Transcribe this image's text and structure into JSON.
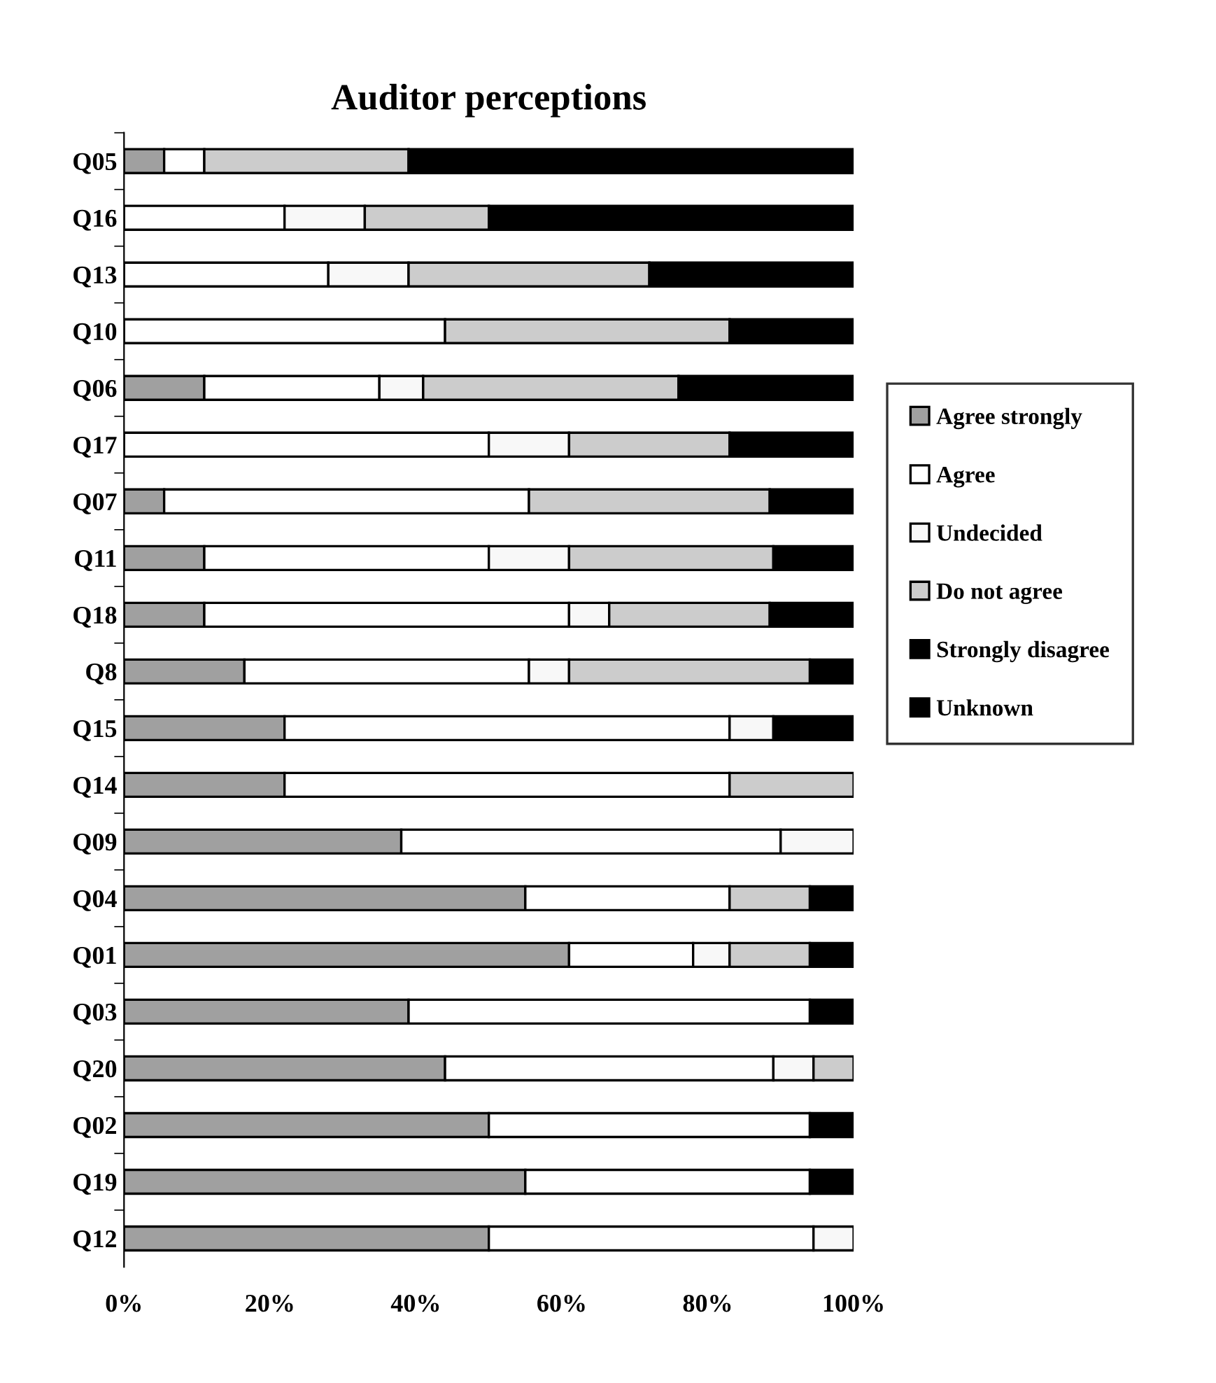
{
  "chart_data": {
    "type": "bar",
    "orientation": "horizontal",
    "stacked": true,
    "title": "Auditor perceptions",
    "categories": [
      "Q05",
      "Q16",
      "Q13",
      "Q10",
      "Q06",
      "Q17",
      "Q07",
      "Q11",
      "Q18",
      "Q8",
      "Q15",
      "Q14",
      "Q09",
      "Q04",
      "Q01",
      "Q03",
      "Q20",
      "Q02",
      "Q19",
      "Q12"
    ],
    "series": [
      {
        "name": "Agree strongly",
        "color": "#a0a0a0",
        "values": [
          5.5,
          null,
          null,
          null,
          11,
          null,
          5.5,
          11,
          11,
          16.5,
          22,
          22,
          38,
          55,
          61,
          39,
          44,
          50,
          55,
          50
        ]
      },
      {
        "name": "Agree",
        "color": "#ffffff",
        "values": [
          5.5,
          22,
          28,
          44,
          24,
          50,
          50,
          39,
          50,
          39,
          61,
          61,
          52,
          28,
          17,
          55,
          45,
          44,
          39,
          44.5
        ]
      },
      {
        "name": "Undecided",
        "color": "#f8f8f8",
        "values": [
          null,
          11,
          11,
          null,
          6,
          11,
          null,
          11,
          5.5,
          5.5,
          6,
          null,
          10,
          null,
          5,
          null,
          5.5,
          null,
          null,
          5.5
        ]
      },
      {
        "name": "Do not agree",
        "color": "#cccccc",
        "values": [
          28,
          17,
          33,
          39,
          35,
          22,
          33,
          28,
          22,
          33,
          null,
          17,
          null,
          11,
          11,
          null,
          5.5,
          null,
          null,
          null
        ]
      },
      {
        "name": "Strongly disagree",
        "color": "#000000",
        "values": [
          61,
          50,
          28,
          17,
          24,
          17,
          11.5,
          11,
          11.5,
          6,
          11,
          null,
          null,
          6,
          6,
          6,
          null,
          6,
          6,
          null
        ]
      },
      {
        "name": "Unknown",
        "color": "#000000",
        "values": [
          null,
          null,
          null,
          null,
          null,
          null,
          null,
          null,
          null,
          null,
          null,
          null,
          null,
          null,
          null,
          null,
          null,
          null,
          null,
          null
        ]
      }
    ],
    "xlim": [
      0,
      100
    ],
    "xticks": [
      {
        "value": 0,
        "label": "0%"
      },
      {
        "value": 20,
        "label": "20%"
      },
      {
        "value": 40,
        "label": "40%"
      },
      {
        "value": 60,
        "label": "60%"
      },
      {
        "value": 80,
        "label": "80%"
      },
      {
        "value": 100,
        "label": "100%"
      }
    ],
    "legend": "right",
    "grid": false
  }
}
